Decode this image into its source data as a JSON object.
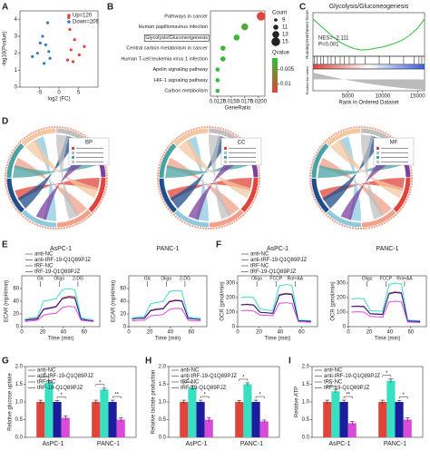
{
  "chart_data": [
    {
      "type": "scatter",
      "panel": "A",
      "xlabel": "log2 (FC)",
      "ylabel": "-log10(Pvalue)",
      "xlim": [
        -10,
        10
      ],
      "xticks": [
        -5,
        0,
        5
      ],
      "ylim": [
        0,
        4.5
      ],
      "yticks": [
        0,
        1,
        2,
        3,
        4
      ],
      "series": [
        {
          "name": "Up=120",
          "color": "#e0443a",
          "x": [
            2.2,
            3.1,
            4.0,
            5.2,
            2.8,
            6.5,
            3.6,
            2.5
          ],
          "values": [
            1.6,
            2.2,
            2.8,
            1.9,
            3.4,
            2.4,
            1.5,
            4.1
          ]
        },
        {
          "name": "Down=206",
          "color": "#2e7fc0",
          "x": [
            -2.3,
            -3.4,
            -4.2,
            -5.5,
            -2.9,
            -6.8,
            -3.8,
            -4.8,
            -2.6
          ],
          "values": [
            1.7,
            2.5,
            3.0,
            2.0,
            3.8,
            1.8,
            1.4,
            2.6,
            2.1
          ]
        }
      ]
    },
    {
      "type": "dot",
      "panel": "B",
      "xlabel": "GeneRatio",
      "categories": [
        "Pathways in cancer",
        "Human papillomavirus infection",
        "Glycolysis/Gluconeogenesis",
        "Central carbon metabolism in cancer",
        "Human T-cell leukemia virus 1 infection",
        "Apelin signaling pathway",
        "HIF-1 signaling pathway",
        "Carbon metabolism"
      ],
      "values": [
        0.0205,
        0.0175,
        0.016,
        0.0135,
        0.0135,
        0.0125,
        0.0125,
        0.0125
      ],
      "counts": [
        15,
        13,
        12,
        11,
        11,
        10,
        10,
        10
      ],
      "qvalues": [
        0.001,
        0.011,
        0.012,
        0.012,
        0.012,
        0.013,
        0.013,
        0.013
      ],
      "highlight": 2,
      "xlim": [
        0.0112,
        0.0212
      ],
      "xticks": [
        0.0125,
        {
          "value": 0.015,
          "label": "0.0150"
        },
        0.0175,
        {
          "value": 0.02,
          "label": "0.0200"
        }
      ],
      "count_title": "Count",
      "count_ticks": [
        9,
        11,
        13,
        15
      ],
      "q_title": "Qvalue",
      "qlim": [
        0.001,
        0.013
      ],
      "qticks": [
        0.01,
        0.005
      ]
    },
    {
      "type": "gsea",
      "panel": "C",
      "title": "Glycolysis/Gluconeogenesis",
      "ylabel": "Running Enrichment Score",
      "ylabel2": "Ranked list metric",
      "xlabel": "Rank in Ordered Dataset",
      "annotations": [
        "NES=−2.111",
        "P=0.001"
      ],
      "x": [
        0,
        1000,
        2000,
        3000,
        4000,
        5000,
        6000,
        7000,
        8000,
        9000,
        10000,
        11000,
        12000,
        13000,
        14000,
        15000,
        16000
      ],
      "values": [
        0,
        -0.1,
        -0.2,
        -0.3,
        -0.38,
        -0.44,
        -0.48,
        -0.5,
        -0.49,
        -0.47,
        -0.45,
        -0.42,
        -0.38,
        -0.33,
        -0.25,
        -0.15,
        0
      ],
      "hits": [
        200,
        600,
        1100,
        1500,
        2100,
        2600,
        3200,
        3900,
        4500,
        5200,
        6000,
        7500,
        9500,
        11000,
        13000,
        14500,
        15200,
        15600
      ],
      "xlim": [
        0,
        16000
      ],
      "ylim": [
        -0.6,
        0.1
      ],
      "xticks": [
        5000,
        10000,
        15000
      ]
    },
    {
      "type": "chord",
      "panel": "D",
      "legend_title": "BP"
    },
    {
      "type": "chord",
      "legend_title": "CC"
    },
    {
      "type": "chord",
      "legend_title": "MF"
    },
    {
      "type": "line",
      "panel": "E",
      "title": "AsPC-1",
      "legend": true,
      "xlabel": "Time (min)",
      "ylabel": "ECAR (mpH/min)",
      "xlim": [
        0,
        75
      ],
      "xticks": [
        0,
        20,
        40,
        60
      ],
      "ylim": [
        0,
        80
      ],
      "yticks": [
        0,
        20,
        40,
        60
      ],
      "annotations": [
        {
          "text": "Glc",
          "x": 18
        },
        {
          "text": "Oligo",
          "x": 36
        },
        {
          "text": "2-DG",
          "x": 54
        }
      ],
      "x": [
        3,
        9,
        15,
        21,
        27,
        33,
        39,
        45,
        51,
        57,
        63,
        69
      ],
      "series": [
        {
          "name": "anti-NC",
          "color": "#e0443a",
          "values": [
            10,
            12,
            13,
            28,
            30,
            32,
            45,
            48,
            47,
            12,
            10,
            9
          ]
        },
        {
          "name": "anti-tRF-19-Q1Q89PJZ",
          "color": "#36e0c0",
          "values": [
            12,
            14,
            15,
            40,
            42,
            44,
            58,
            60,
            58,
            14,
            12,
            11
          ]
        },
        {
          "name": "tRF-NC",
          "color": "#1c1c9c",
          "values": [
            10,
            11,
            12,
            27,
            29,
            31,
            44,
            46,
            45,
            12,
            10,
            9
          ]
        },
        {
          "name": "tRF-19-Q1Q89PJZ",
          "color": "#d94ad9",
          "values": [
            8,
            9,
            10,
            18,
            20,
            21,
            30,
            32,
            31,
            10,
            9,
            8
          ]
        }
      ]
    },
    {
      "type": "line",
      "title": "PANC-1",
      "xlabel": "Time (min)",
      "ylabel": "ECAR (mpH/min)",
      "xlim": [
        0,
        75
      ],
      "xticks": [
        0,
        20,
        40,
        60
      ],
      "ylim": [
        0,
        80
      ],
      "yticks": [
        0,
        20,
        40,
        60
      ],
      "annotations": [
        {
          "text": "Glc",
          "x": 18
        },
        {
          "text": "Oligo",
          "x": 36
        },
        {
          "text": "2-DG",
          "x": 54
        }
      ],
      "x": [
        3,
        9,
        15,
        21,
        27,
        33,
        39,
        45,
        51,
        57,
        63,
        69
      ],
      "series": [
        {
          "color": "#e0443a",
          "values": [
            12,
            13,
            14,
            26,
            28,
            29,
            40,
            42,
            41,
            13,
            12,
            11
          ]
        },
        {
          "color": "#36e0c0",
          "values": [
            14,
            15,
            16,
            36,
            38,
            40,
            55,
            57,
            56,
            15,
            14,
            13
          ]
        },
        {
          "color": "#1c1c9c",
          "values": [
            12,
            13,
            13,
            25,
            27,
            28,
            39,
            41,
            40,
            13,
            12,
            11
          ]
        },
        {
          "color": "#d94ad9",
          "values": [
            9,
            10,
            10,
            17,
            18,
            19,
            27,
            29,
            28,
            10,
            9,
            9
          ]
        }
      ]
    },
    {
      "type": "line",
      "panel": "F",
      "title": "AsPC-1",
      "legend": true,
      "xlabel": "Time (min)",
      "ylabel": "OCR (pmol/min)",
      "xlim": [
        0,
        75
      ],
      "xticks": [
        0,
        20,
        40,
        60
      ],
      "ylim": [
        0,
        350
      ],
      "yticks": [
        0,
        100,
        200,
        300
      ],
      "annotations": [
        {
          "text": "Oligo",
          "x": 18
        },
        {
          "text": "FCCP",
          "x": 36
        },
        {
          "text": "Rot+AA",
          "x": 54
        }
      ],
      "x": [
        3,
        9,
        15,
        21,
        27,
        33,
        39,
        45,
        51,
        57,
        63,
        69
      ],
      "series": [
        {
          "name": "anti-NC",
          "color": "#e0443a",
          "values": [
            150,
            155,
            150,
            100,
            95,
            90,
            220,
            230,
            225,
            40,
            38,
            36
          ]
        },
        {
          "name": "anti-tRF-19-Q1Q89PJZ",
          "color": "#36e0c0",
          "values": [
            200,
            205,
            200,
            120,
            115,
            110,
            280,
            290,
            285,
            45,
            42,
            40
          ]
        },
        {
          "name": "tRF-NC",
          "color": "#1c1c9c",
          "values": [
            150,
            152,
            148,
            98,
            95,
            92,
            215,
            225,
            220,
            40,
            38,
            36
          ]
        },
        {
          "name": "tRF-19-Q1Q89PJZ",
          "color": "#d94ad9",
          "values": [
            110,
            112,
            108,
            80,
            78,
            75,
            160,
            165,
            160,
            35,
            33,
            30
          ]
        }
      ]
    },
    {
      "type": "line",
      "title": "PANC-1",
      "xlabel": "Time (min)",
      "ylabel": "OCR (pmol/min)",
      "xlim": [
        0,
        75
      ],
      "xticks": [
        0,
        20,
        40,
        60
      ],
      "ylim": [
        0,
        350
      ],
      "yticks": [
        0,
        100,
        200,
        300
      ],
      "annotations": [
        {
          "text": "Oligo",
          "x": 18
        },
        {
          "text": "FCCP",
          "x": 36
        },
        {
          "text": "Rot+AA",
          "x": 54
        }
      ],
      "x": [
        3,
        9,
        15,
        21,
        27,
        33,
        39,
        45,
        51,
        57,
        63,
        69
      ],
      "series": [
        {
          "color": "#e0443a",
          "values": [
            140,
            142,
            140,
            90,
            88,
            85,
            230,
            240,
            235,
            40,
            38,
            35
          ]
        },
        {
          "color": "#36e0c0",
          "values": [
            190,
            195,
            192,
            110,
            108,
            105,
            290,
            300,
            295,
            45,
            42,
            40
          ]
        },
        {
          "color": "#1c1c9c",
          "values": [
            138,
            140,
            137,
            88,
            86,
            84,
            225,
            235,
            230,
            39,
            37,
            35
          ]
        },
        {
          "color": "#d94ad9",
          "values": [
            100,
            102,
            100,
            70,
            68,
            66,
            170,
            175,
            170,
            32,
            30,
            28
          ]
        }
      ]
    },
    {
      "type": "bar",
      "panel": "G",
      "ylabel": "Relative glucose uptake",
      "categories": [
        "AsPC-1",
        "PANC-1"
      ],
      "ylim": [
        0,
        2.0
      ],
      "yticks": [
        {
          "value": 0,
          "label": "0.0"
        },
        0.5,
        {
          "value": 1,
          "label": "1.0"
        },
        1.5,
        {
          "value": 2,
          "label": "2.0"
        }
      ],
      "sig": [
        [
          "*",
          "*"
        ],
        [
          "*",
          "**"
        ]
      ],
      "series": [
        {
          "name": "anti-NC",
          "color": "#e0443a",
          "values": [
            1.0,
            1.0
          ],
          "errors": [
            0.05,
            0.05
          ]
        },
        {
          "name": "anti-tRF-19-Q1Q89PJZ",
          "color": "#36e0c0",
          "values": [
            1.55,
            1.35
          ],
          "errors": [
            0.05,
            0.04
          ]
        },
        {
          "name": "tRF-NC",
          "color": "#1c1c9c",
          "values": [
            1.0,
            1.0
          ],
          "errors": [
            0.04,
            0.05
          ]
        },
        {
          "name": "tRF-19-Q1Q89PJZ",
          "color": "#d94ad9",
          "values": [
            0.55,
            0.5
          ],
          "errors": [
            0.05,
            0.05
          ]
        }
      ]
    },
    {
      "type": "bar",
      "panel": "H",
      "ylabel": "Relative lactate production",
      "categories": [
        "AsPC-1",
        "PANC-1"
      ],
      "ylim": [
        0,
        2.0
      ],
      "yticks": [
        {
          "value": 0,
          "label": "0.0"
        },
        0.5,
        {
          "value": 1,
          "label": "1.0"
        },
        1.5,
        {
          "value": 2,
          "label": "2.0"
        }
      ],
      "sig": [
        [
          "*",
          "*"
        ],
        [
          "*",
          "*"
        ]
      ],
      "series": [
        {
          "name": "anti-NC",
          "color": "#e0443a",
          "values": [
            1.0,
            1.0
          ],
          "errors": [
            0.05,
            0.04
          ]
        },
        {
          "name": "anti-tRF-19-Q1Q89PJZ",
          "color": "#36e0c0",
          "values": [
            1.4,
            1.5
          ],
          "errors": [
            0.05,
            0.04
          ]
        },
        {
          "name": "tRF-NC",
          "color": "#1c1c9c",
          "values": [
            1.0,
            1.0
          ],
          "errors": [
            0.05,
            0.05
          ]
        },
        {
          "name": "tRF-19-Q1Q89PJZ",
          "color": "#d94ad9",
          "values": [
            0.5,
            0.45
          ],
          "errors": [
            0.06,
            0.04
          ]
        }
      ]
    },
    {
      "type": "bar",
      "panel": "I",
      "ylabel": "Relative ATP",
      "categories": [
        "AsPC-1",
        "PANC-1"
      ],
      "ylim": [
        0,
        2.0
      ],
      "yticks": [
        {
          "value": 0,
          "label": "0.0"
        },
        0.5,
        {
          "value": 1,
          "label": "1.0"
        },
        1.5,
        {
          "value": 2,
          "label": "2.0"
        }
      ],
      "sig": [
        [
          "*",
          "**"
        ],
        [
          "*",
          "*"
        ]
      ],
      "series": [
        {
          "name": "anti-NC",
          "color": "#e0443a",
          "values": [
            1.0,
            1.0
          ],
          "errors": [
            0.05,
            0.05
          ]
        },
        {
          "name": "anti-tRF-19-Q1Q89PJZ",
          "color": "#36e0c0",
          "values": [
            1.3,
            1.6
          ],
          "errors": [
            0.04,
            0.05
          ]
        },
        {
          "name": "tRF-NC",
          "color": "#1c1c9c",
          "values": [
            1.0,
            1.0
          ],
          "errors": [
            0.05,
            0.04
          ]
        },
        {
          "name": "tRF-19-Q1Q89PJZ",
          "color": "#d94ad9",
          "values": [
            0.4,
            0.5
          ],
          "errors": [
            0.05,
            0.05
          ]
        }
      ]
    }
  ]
}
